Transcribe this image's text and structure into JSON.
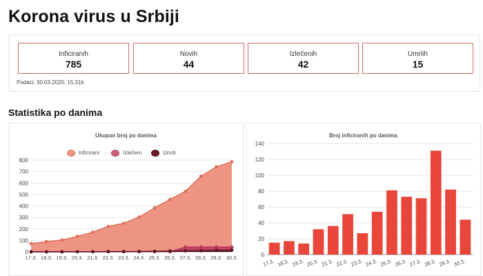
{
  "page": {
    "title": "Korona virus u Srbiji",
    "section_title": "Statistika po danima"
  },
  "stats": [
    {
      "label": "Inficiranih",
      "value": "785"
    },
    {
      "label": "Novih",
      "value": "44"
    },
    {
      "label": "Izlečenih",
      "value": "42"
    },
    {
      "label": "Umrlih",
      "value": "15"
    }
  ],
  "updated_text": "Podaci: 30.03.2020, 15:31h",
  "colors": {
    "infected": "#e0705a",
    "infected_fill": "#ed9483",
    "recovered": "#b5365a",
    "deaths": "#5a1220",
    "bar": "#e8463a",
    "box_border": "#cc6b66"
  },
  "chart_data": [
    {
      "type": "area",
      "title": "Ukupan broj po danima",
      "categories": [
        "17.3.",
        "18.3.",
        "19.3.",
        "20.3.",
        "21.3.",
        "22.3.",
        "23.3.",
        "24.3.",
        "25.3.",
        "26.3.",
        "27.3.",
        "28.3.",
        "29.3.",
        "30.3."
      ],
      "series": [
        {
          "name": "Inficirani",
          "values": [
            72,
            89,
            103,
            135,
            171,
            222,
            249,
            303,
            384,
            457,
            528,
            659,
            741,
            785
          ]
        },
        {
          "name": "Izlečeni",
          "values": [
            1,
            1,
            1,
            1,
            1,
            1,
            1,
            1,
            1,
            1,
            42,
            42,
            42,
            42
          ]
        },
        {
          "name": "Umrli",
          "values": [
            0,
            0,
            0,
            1,
            1,
            2,
            2,
            3,
            5,
            7,
            9,
            10,
            13,
            15
          ]
        }
      ],
      "yticks": [
        0,
        100,
        200,
        300,
        400,
        500,
        600,
        700,
        800
      ],
      "ylim": [
        0,
        800
      ],
      "legend_position": "top"
    },
    {
      "type": "bar",
      "title": "Broj inficiranih po danima",
      "categories": [
        "17.3.",
        "18.3.",
        "19.3.",
        "20.3.",
        "21.3.",
        "22.3.",
        "23.3.",
        "24.3.",
        "25.3.",
        "26.3.",
        "27.3.",
        "28.3.",
        "29.3.",
        "30.3."
      ],
      "values": [
        15,
        17,
        14,
        32,
        36,
        51,
        27,
        54,
        81,
        73,
        71,
        131,
        82,
        44
      ],
      "yticks": [
        0,
        20,
        40,
        60,
        80,
        100,
        120,
        140
      ],
      "ylim": [
        0,
        140
      ]
    }
  ]
}
